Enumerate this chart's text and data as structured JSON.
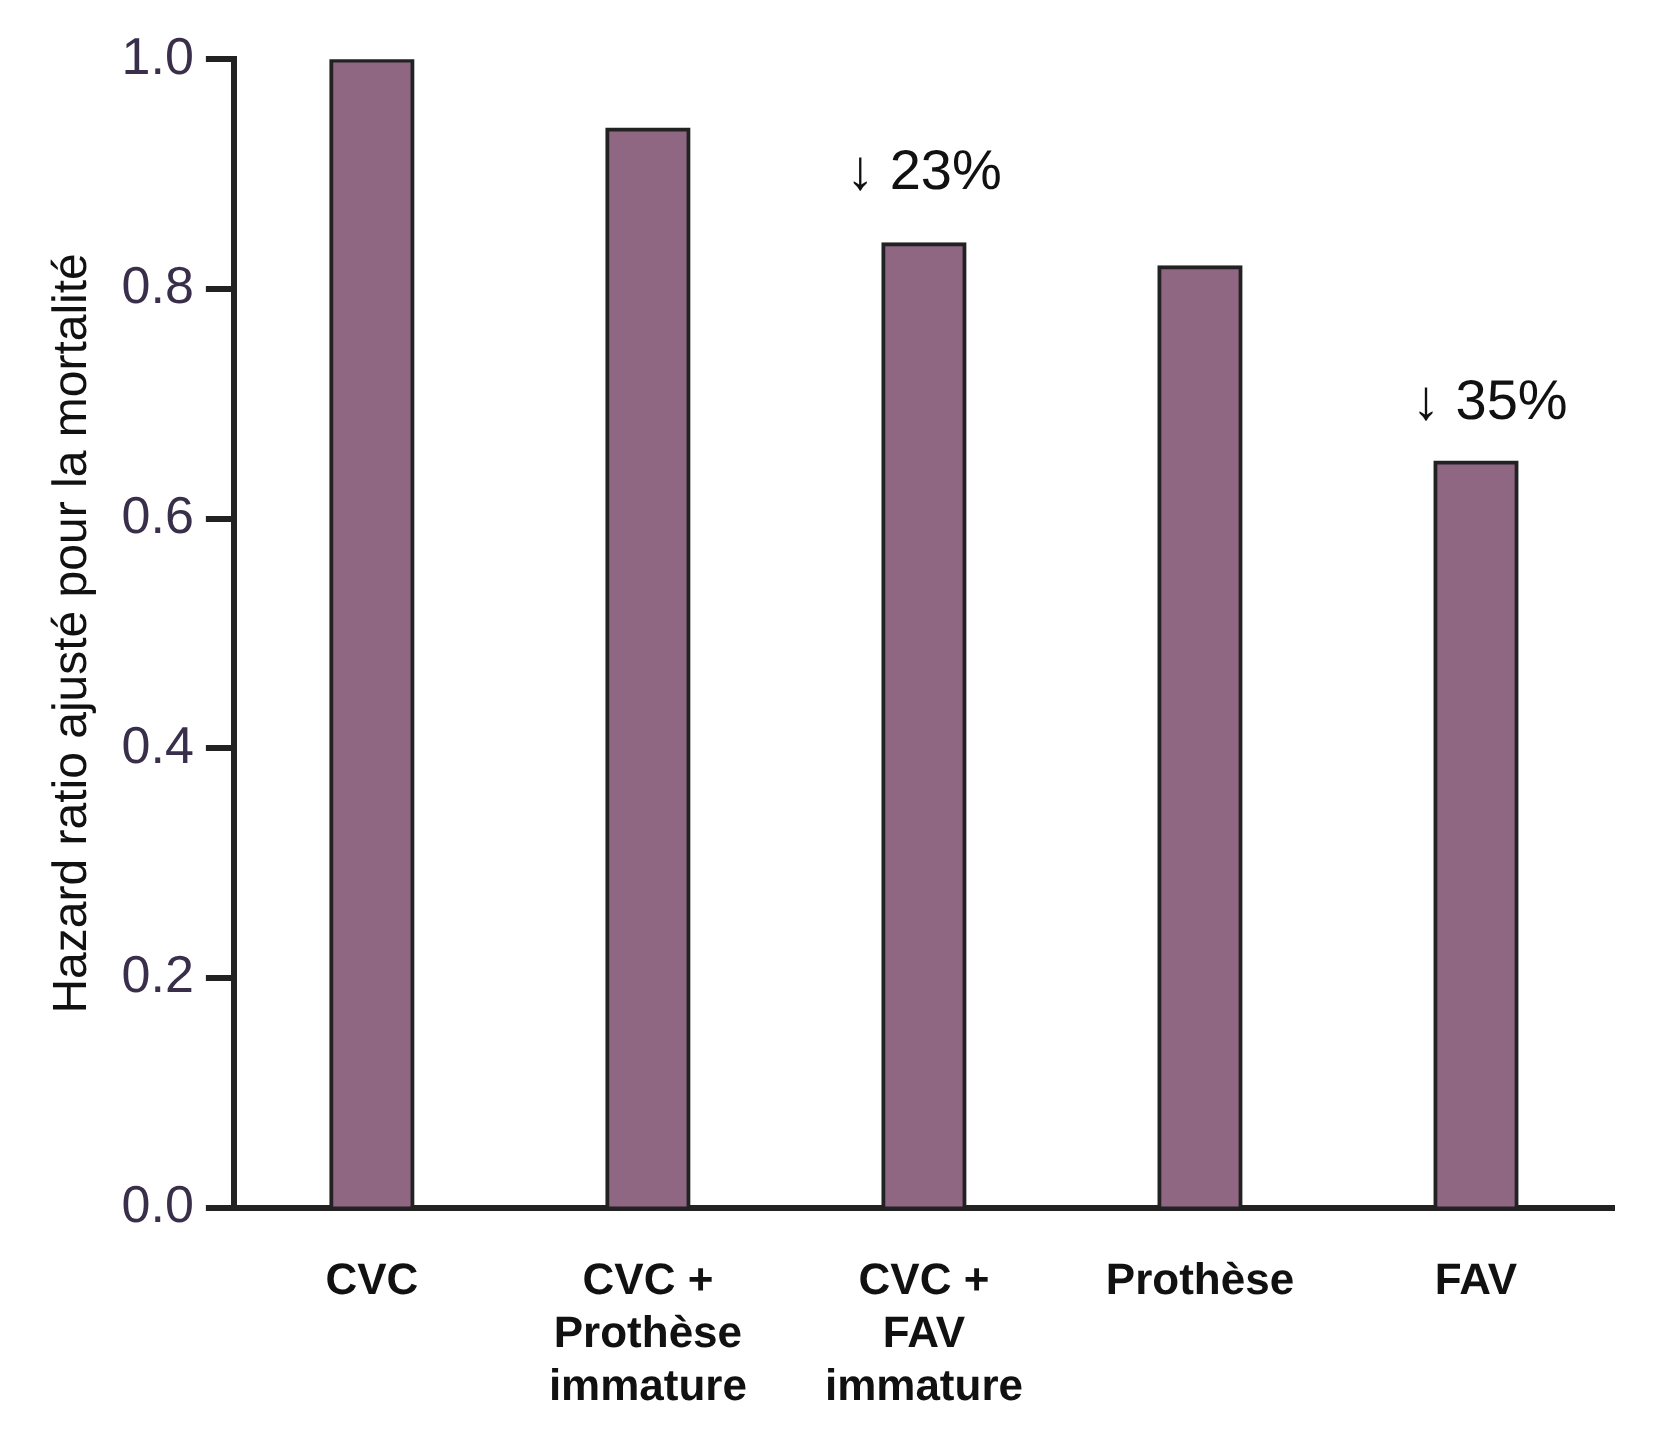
{
  "chart_data": {
    "type": "bar",
    "ylabel": "Hazard ratio ajusté pour la mortalité",
    "categories": [
      "CVC",
      "CVC + Prothèse immature",
      "CVC + FAV immature",
      "Prothèse",
      "FAV"
    ],
    "values": [
      1.0,
      0.94,
      0.84,
      0.82,
      0.65
    ],
    "color": "#8f6783",
    "ylim": [
      0,
      1.0
    ],
    "yticks": [
      {
        "value": 0,
        "label": "0.0"
      },
      {
        "value": 0.2,
        "label": "0.2"
      },
      {
        "value": 0.4,
        "label": "0.4"
      },
      {
        "value": 0.6,
        "label": "0.6"
      },
      {
        "value": 0.8,
        "label": "0.8"
      },
      {
        "value": 1.0,
        "label": "1.0"
      }
    ],
    "grid": false,
    "legend": false,
    "annotations": [
      "↓ 23%",
      "↓ 35%"
    ]
  }
}
